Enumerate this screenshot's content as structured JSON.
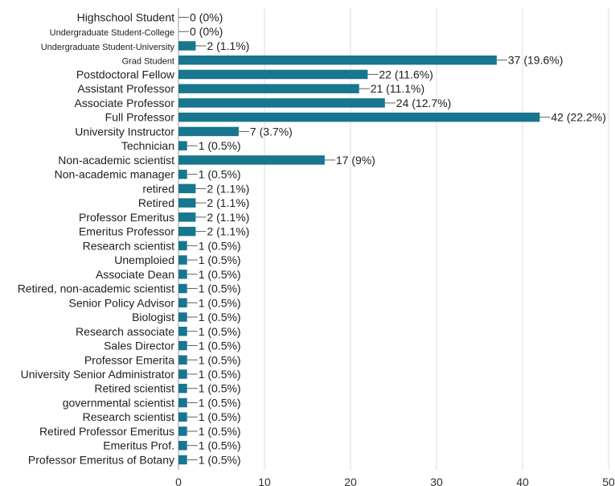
{
  "chart_data": {
    "type": "bar",
    "orientation": "horizontal",
    "title": "",
    "xlabel": "",
    "ylabel": "",
    "xlim": [
      0,
      50
    ],
    "xticks": [
      "0",
      "10",
      "20",
      "30",
      "40",
      "50"
    ],
    "grid": true,
    "bar_color": "#18768f",
    "categories": [
      "Highschool Student",
      "Undergraduate Student-College",
      "Undergraduate Student-University",
      "Grad Student",
      "Postdoctoral Fellow",
      "Assistant Professor",
      "Associate Professor",
      "Full Professor",
      "University Instructor",
      "Technician",
      "Non-academic scientist",
      "Non-academic manager",
      "retired",
      "Retired",
      "Professor Emeritus",
      "Emeritus Professor",
      "Research scientist",
      "Unemploied",
      "Associate Dean",
      "Retired, non-academic scientist",
      "Senior Policy Advisor",
      "Biologist",
      "Research associate",
      "Sales Director",
      "Professor Emerita",
      "University Senior Administrator",
      "Retired scientist",
      "governmental scientist",
      "Research scientist",
      "Retired Professor Emeritus",
      "Emeritus Prof.",
      "Professor Emeritus of Botany"
    ],
    "values": [
      0,
      0,
      2,
      37,
      22,
      21,
      24,
      42,
      7,
      1,
      17,
      1,
      2,
      2,
      2,
      2,
      1,
      1,
      1,
      1,
      1,
      1,
      1,
      1,
      1,
      1,
      1,
      1,
      1,
      1,
      1,
      1
    ],
    "data_labels": [
      "0 (0%)",
      "0 (0%)",
      "2 (1.1%)",
      "37 (19.6%)",
      "22 (11.6%)",
      "21 (11.1%)",
      "24 (12.7%)",
      "42 (22.2%)",
      "7 (3.7%)",
      "1 (0.5%)",
      "17 (9%)",
      "1 (0.5%)",
      "2 (1.1%)",
      "2 (1.1%)",
      "2 (1.1%)",
      "2 (1.1%)",
      "1 (0.5%)",
      "1 (0.5%)",
      "1 (0.5%)",
      "1 (0.5%)",
      "1 (0.5%)",
      "1 (0.5%)",
      "1 (0.5%)",
      "1 (0.5%)",
      "1 (0.5%)",
      "1 (0.5%)",
      "1 (0.5%)",
      "1 (0.5%)",
      "1 (0.5%)",
      "1 (0.5%)",
      "1 (0.5%)",
      "1 (0.5%)"
    ]
  }
}
